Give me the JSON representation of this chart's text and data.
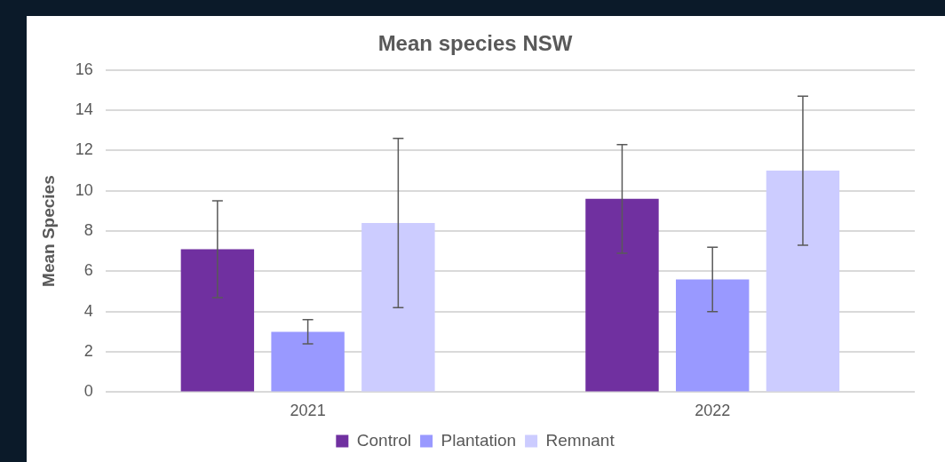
{
  "chart_data": {
    "type": "bar",
    "title": "Mean species NSW",
    "ylabel": "Mean Species",
    "categories": [
      "2021",
      "2022"
    ],
    "series": [
      {
        "name": "Control",
        "color": "#7030a0",
        "values": [
          7.1,
          9.6
        ],
        "errors": [
          2.4,
          2.7
        ]
      },
      {
        "name": "Plantation",
        "color": "#9999ff",
        "values": [
          3.0,
          5.6
        ],
        "errors": [
          0.6,
          1.6
        ]
      },
      {
        "name": "Remnant",
        "color": "#ccccff",
        "values": [
          8.4,
          11.0
        ],
        "errors": [
          4.2,
          3.7
        ]
      }
    ],
    "ylim": [
      0,
      16
    ],
    "yticks": [
      0,
      2,
      4,
      6,
      8,
      10,
      12,
      14,
      16
    ],
    "grid": "y",
    "legend": "bottom"
  }
}
